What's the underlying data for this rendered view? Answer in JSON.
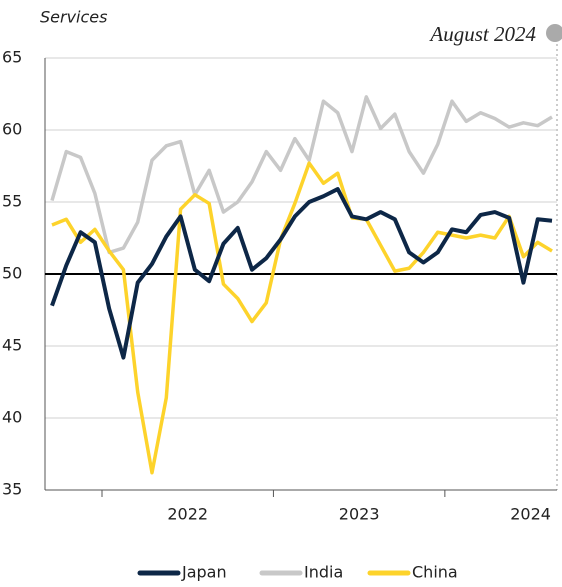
{
  "chart_data": {
    "type": "line",
    "title": "Services",
    "annotation": "August 2024",
    "categories": [
      null,
      null,
      null,
      null,
      null,
      null,
      null,
      null,
      null,
      "2022",
      null,
      null,
      null,
      null,
      null,
      null,
      null,
      null,
      null,
      null,
      null,
      "2023",
      null,
      null,
      null,
      null,
      null,
      null,
      null,
      null,
      null,
      null,
      null,
      "2024",
      null,
      null
    ],
    "series": [
      {
        "name": "Japan",
        "color": "#0d2747",
        "values": [
          47.8,
          50.6,
          52.9,
          52.2,
          47.6,
          44.2,
          49.4,
          50.7,
          52.6,
          54.0,
          50.3,
          49.5,
          52.1,
          53.2,
          50.3,
          51.1,
          52.4,
          54.0,
          55.0,
          55.4,
          55.9,
          54.0,
          53.8,
          54.3,
          53.8,
          51.5,
          50.8,
          51.5,
          53.1,
          52.9,
          54.1,
          54.3,
          53.9,
          49.4,
          53.8,
          53.7
        ]
      },
      {
        "name": "India",
        "color": "#c8c8c8",
        "values": [
          55.1,
          58.5,
          58.1,
          55.6,
          51.5,
          51.8,
          53.6,
          57.9,
          58.9,
          59.2,
          55.5,
          57.2,
          54.3,
          55.0,
          56.4,
          58.5,
          57.2,
          59.4,
          57.9,
          62.0,
          61.2,
          58.5,
          62.3,
          60.1,
          61.1,
          58.5,
          57.0,
          59.0,
          62.0,
          60.6,
          61.2,
          60.8,
          60.2,
          60.5,
          60.3,
          60.9
        ]
      },
      {
        "name": "China",
        "color": "#fdd32b",
        "values": [
          53.4,
          53.8,
          52.2,
          53.1,
          51.6,
          50.3,
          41.8,
          36.2,
          41.4,
          54.5,
          55.5,
          54.9,
          49.3,
          48.3,
          46.7,
          48.0,
          52.4,
          54.9,
          57.7,
          56.3,
          57.0,
          53.9,
          53.8,
          52.0,
          50.2,
          50.4,
          51.5,
          52.9,
          52.7,
          52.5,
          52.7,
          52.5,
          54.0,
          51.2,
          52.2,
          51.6
        ]
      }
    ],
    "ylim": [
      35,
      65
    ],
    "yticks": [
      35,
      40,
      45,
      50,
      55,
      60,
      65
    ],
    "grid": true,
    "reference_line": 50
  }
}
